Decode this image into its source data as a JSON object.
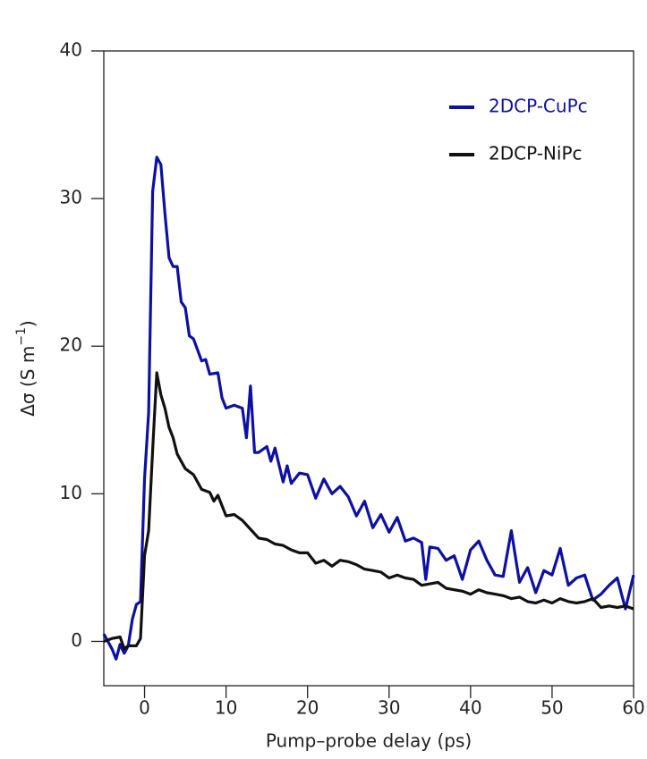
{
  "chart_data": {
    "type": "line",
    "x_label": "Pump–probe delay (ps)",
    "y_label": {
      "text": "Δσ (S m",
      "superscript": "−1",
      "suffix": ")"
    },
    "xlim": [
      -5,
      60
    ],
    "xticks": [
      0,
      10,
      20,
      30,
      40,
      50,
      60
    ],
    "ylim": [
      -3,
      40
    ],
    "yticks": [
      0,
      10,
      20,
      30,
      40
    ],
    "legend": "upper right",
    "series": [
      {
        "name": "2DCP-CuPc",
        "color": "#0d10a3",
        "x": [
          -5,
          -4,
          -3.5,
          -3,
          -2.5,
          -2,
          -1.5,
          -1,
          -0.5,
          0,
          0.5,
          1,
          1.5,
          2,
          2.5,
          3,
          3.5,
          4,
          4.5,
          5,
          5.5,
          6,
          7,
          7.5,
          8,
          9,
          9.5,
          10,
          11,
          12,
          12.5,
          13,
          13.5,
          14,
          15,
          15.5,
          16,
          17,
          17.5,
          18,
          19,
          20,
          21,
          22,
          23,
          24,
          25,
          26,
          27,
          28,
          29,
          30,
          31,
          32,
          33,
          34,
          34.5,
          35,
          36,
          37,
          38,
          39,
          40,
          41,
          42,
          43,
          44,
          45,
          46,
          47,
          48,
          49,
          50,
          51,
          52,
          53,
          54,
          55,
          56,
          57,
          58,
          59,
          60
        ],
        "values": [
          0.5,
          -0.5,
          -1.2,
          -0.2,
          -0.8,
          -0.3,
          1.5,
          2.5,
          2.7,
          11,
          15.5,
          30.5,
          32.8,
          32.3,
          29,
          26,
          25.4,
          25.4,
          23,
          22.6,
          20.7,
          20.5,
          19,
          19.1,
          18.1,
          18.2,
          16.5,
          15.8,
          16,
          15.8,
          13.8,
          17.3,
          12.8,
          12.8,
          13.2,
          12.2,
          13.1,
          10.8,
          11.9,
          10.7,
          11.4,
          11.3,
          9.7,
          11,
          10,
          10.5,
          9.8,
          8.5,
          9.5,
          7.7,
          8.6,
          7.4,
          8.4,
          6.8,
          7,
          6.7,
          4.2,
          6.4,
          6.3,
          5.5,
          5.8,
          4.2,
          6.2,
          6.8,
          5.5,
          4.5,
          4.4,
          7.5,
          4,
          5,
          3.3,
          4.8,
          4.5,
          6.3,
          3.8,
          4.3,
          4.5,
          2.8,
          3.2,
          3.8,
          4.3,
          2.2,
          4.5
        ]
      },
      {
        "name": "2DCP-NiPc",
        "color": "#111111",
        "x": [
          -5,
          -4,
          -3,
          -2.5,
          -2,
          -1,
          -0.5,
          0,
          0.5,
          1,
          1.5,
          2,
          2.5,
          3,
          3.5,
          4,
          5,
          6,
          7,
          8,
          8.5,
          9,
          10,
          11,
          12,
          13,
          14,
          15,
          16,
          17,
          18,
          19,
          20,
          21,
          22,
          23,
          24,
          25,
          26,
          27,
          28,
          29,
          30,
          31,
          32,
          33,
          34,
          35,
          36,
          37,
          38,
          39,
          40,
          41,
          42,
          43,
          44,
          45,
          46,
          47,
          48,
          49,
          50,
          51,
          52,
          53,
          54,
          55,
          56,
          57,
          58,
          59,
          60
        ],
        "values": [
          0,
          0.2,
          0.3,
          -0.5,
          -0.3,
          -0.3,
          0.2,
          5.8,
          7.5,
          13,
          18.2,
          16.7,
          15.8,
          14.5,
          13.8,
          12.7,
          11.7,
          11.3,
          10.3,
          10.1,
          9.5,
          9.9,
          8.5,
          8.6,
          8.2,
          7.6,
          7,
          6.9,
          6.6,
          6.5,
          6.2,
          6,
          6,
          5.3,
          5.5,
          5.1,
          5.5,
          5.4,
          5.2,
          4.9,
          4.8,
          4.7,
          4.3,
          4.5,
          4.3,
          4.2,
          3.8,
          3.9,
          4,
          3.6,
          3.5,
          3.4,
          3.2,
          3.5,
          3.3,
          3.2,
          3.1,
          2.9,
          3,
          2.7,
          2.6,
          2.8,
          2.6,
          2.9,
          2.7,
          2.6,
          2.7,
          2.9,
          2.3,
          2.4,
          2.3,
          2.4,
          2.2
        ]
      }
    ]
  }
}
